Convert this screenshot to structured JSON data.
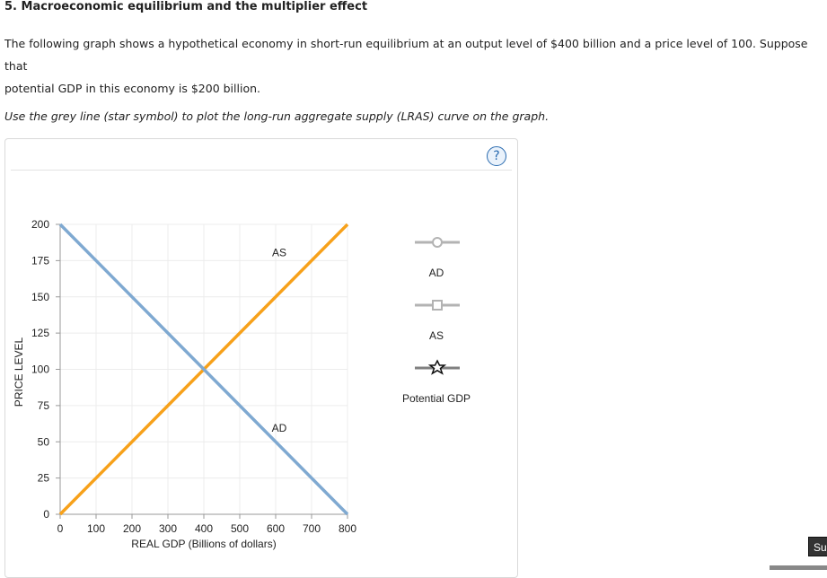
{
  "question": {
    "title": "5. Macroeconomic equilibrium and the multiplier effect",
    "intro_line1": "The following graph shows a hypothetical economy in short-run equilibrium at an output level of $400 billion and a price level of 100. Suppose that",
    "intro_line2": "potential GDP in this economy is $200 billion.",
    "instruction": "Use the grey line (star symbol) to plot the long-run aggregate supply (LRAS) curve on the graph."
  },
  "help": {
    "label": "?"
  },
  "chart_data": {
    "type": "line",
    "xlabel": "REAL GDP (Billions of dollars)",
    "ylabel": "PRICE LEVEL",
    "xlim": [
      0,
      800
    ],
    "ylim": [
      0,
      200
    ],
    "xticks": [
      0,
      100,
      200,
      300,
      400,
      500,
      600,
      700,
      800
    ],
    "yticks": [
      0,
      25,
      50,
      75,
      100,
      125,
      150,
      175,
      200
    ],
    "grid": true,
    "series": [
      {
        "name": "AS",
        "color": "#f7a11a",
        "points": [
          [
            0,
            0
          ],
          [
            800,
            200
          ]
        ]
      },
      {
        "name": "AD",
        "color": "#7fa9d1",
        "points": [
          [
            0,
            200
          ],
          [
            800,
            0
          ]
        ]
      }
    ],
    "annotations": [
      {
        "text": "AS",
        "x": 630,
        "y": 178
      },
      {
        "text": "AD",
        "x": 630,
        "y": 57
      }
    ]
  },
  "legend": {
    "items": [
      {
        "label": "AD",
        "symbol": "circle"
      },
      {
        "label": "AS",
        "symbol": "square"
      },
      {
        "label": "Potential GDP",
        "symbol": "star"
      }
    ]
  },
  "submit": {
    "label": "Sub"
  }
}
